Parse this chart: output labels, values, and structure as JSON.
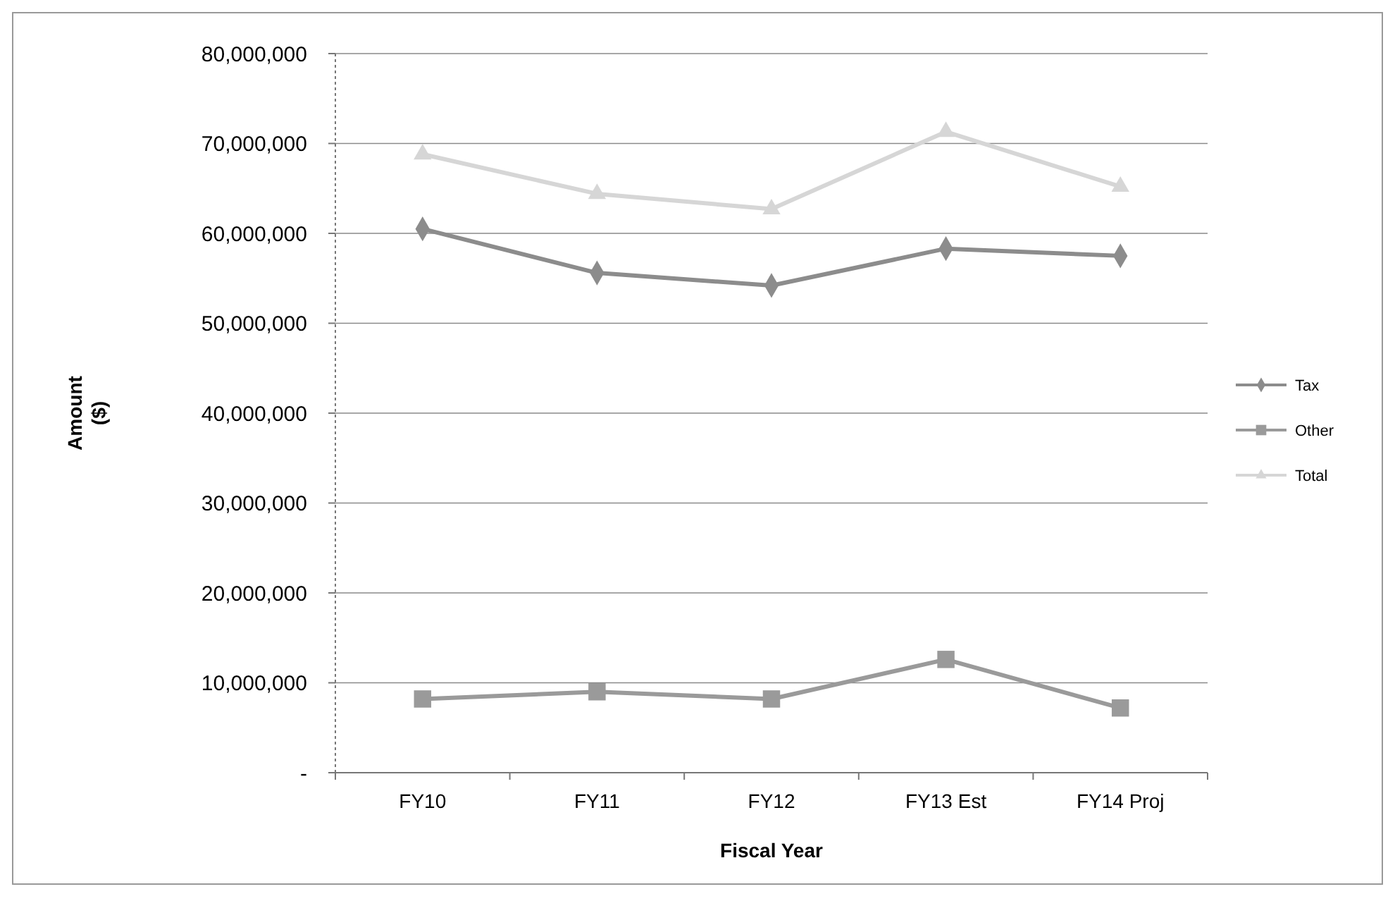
{
  "chart_data": {
    "type": "line",
    "xlabel": "Fiscal Year",
    "ylabel": "Amount\n($)",
    "categories": [
      "FY10",
      "FY11",
      "FY12",
      "FY13 Est",
      "FY14 Proj"
    ],
    "series": [
      {
        "name": "Tax",
        "color": "#8c8c8c",
        "marker": "diamond",
        "values": [
          60500000,
          55600000,
          54200000,
          58300000,
          57500000
        ]
      },
      {
        "name": "Other",
        "color": "#9a9a9a",
        "marker": "square",
        "values": [
          8200000,
          9000000,
          8200000,
          12600000,
          7200000
        ]
      },
      {
        "name": "Total",
        "color": "#d6d6d6",
        "marker": "triangle",
        "values": [
          68800000,
          64400000,
          62700000,
          71300000,
          65200000
        ]
      }
    ],
    "ylim": [
      0,
      80000000
    ],
    "yticks": [
      {
        "value": 0,
        "label": "-"
      },
      {
        "value": 10000000,
        "label": "10,000,000"
      },
      {
        "value": 20000000,
        "label": "20,000,000"
      },
      {
        "value": 30000000,
        "label": "30,000,000"
      },
      {
        "value": 40000000,
        "label": "40,000,000"
      },
      {
        "value": 50000000,
        "label": "50,000,000"
      },
      {
        "value": 60000000,
        "label": "60,000,000"
      },
      {
        "value": 70000000,
        "label": "70,000,000"
      },
      {
        "value": 80000000,
        "label": "80,000,000"
      }
    ],
    "grid": "y",
    "legend": "right",
    "line_style": "solid"
  }
}
